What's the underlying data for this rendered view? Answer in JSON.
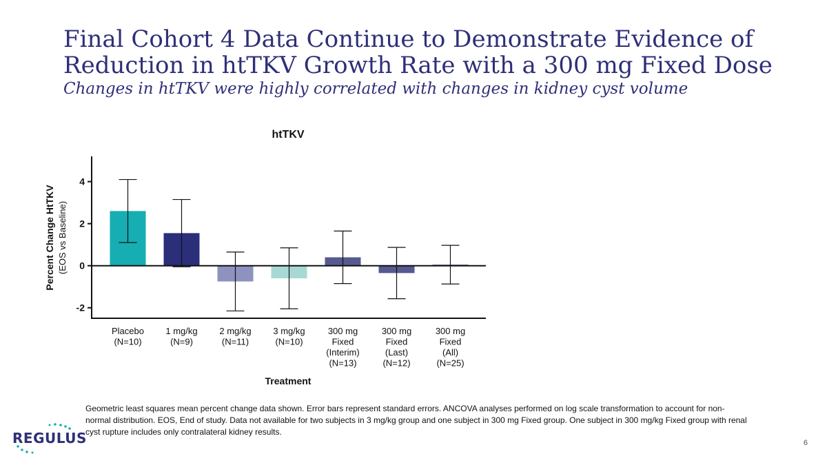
{
  "slide": {
    "title_line1": "Final Cohort 4 Data Continue to Demonstrate Evidence of",
    "title_line2": "Reduction in htTKV Growth Rate with a 300 mg Fixed Dose",
    "subtitle": "Changes in htTKV were highly correlated with changes in kidney cyst volume",
    "footnote": "Geometric least squares mean percent change data shown. Error bars represent standard errors. ANCOVA analyses performed on log scale transformation to account for non-normal distribution. EOS, End of study. Data not available for two subjects in 3 mg/kg group and one subject in 300 mg Fixed group. One subject in 300 mg/kg Fixed group with renal cyst rupture includes only contralateral kidney results.",
    "logo_text": "REGULUS",
    "page_number": "6"
  },
  "chart_data": {
    "type": "bar",
    "title": "htTKV",
    "xlabel": "Treatment",
    "ylabel": "Percent Change HtTKV",
    "ylabel_sub": "(EOS vs Baseline)",
    "ylim": [
      -2.5,
      5.2
    ],
    "yticks": [
      -2,
      0,
      2,
      4
    ],
    "categories": [
      [
        "Placebo",
        "(N=10)"
      ],
      [
        "1 mg/kg",
        "(N=9)"
      ],
      [
        "2 mg/kg",
        "(N=11)"
      ],
      [
        "3 mg/kg",
        "(N=10)"
      ],
      [
        "300 mg",
        "Fixed",
        "(Interim)",
        "(N=13)"
      ],
      [
        "300 mg",
        "Fixed",
        "(Last)",
        "(N=12)"
      ],
      [
        "300 mg",
        "Fixed",
        "(All)",
        "(N=25)"
      ]
    ],
    "values": [
      2.6,
      1.55,
      -0.75,
      -0.6,
      0.4,
      -0.35,
      0.05
    ],
    "errors": [
      1.5,
      1.6,
      1.4,
      1.45,
      1.25,
      1.22,
      0.92
    ],
    "colors": [
      "#16aeb2",
      "#2b2f7a",
      "#8e92bf",
      "#a8d8d4",
      "#575a8e",
      "#575a8e",
      "#575a8e"
    ]
  }
}
